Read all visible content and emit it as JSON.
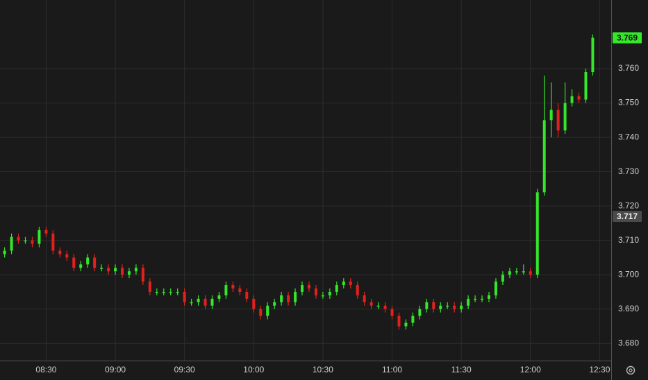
{
  "chart_data": {
    "type": "candlestick",
    "x": [
      "08:12",
      "08:15",
      "08:18",
      "08:21",
      "08:24",
      "08:27",
      "08:30",
      "08:33",
      "08:36",
      "08:39",
      "08:42",
      "08:45",
      "08:48",
      "08:51",
      "08:54",
      "08:57",
      "09:00",
      "09:03",
      "09:06",
      "09:09",
      "09:12",
      "09:15",
      "09:18",
      "09:21",
      "09:24",
      "09:27",
      "09:30",
      "09:33",
      "09:36",
      "09:39",
      "09:42",
      "09:45",
      "09:48",
      "09:51",
      "09:54",
      "09:57",
      "10:00",
      "10:03",
      "10:06",
      "10:09",
      "10:12",
      "10:15",
      "10:18",
      "10:21",
      "10:24",
      "10:27",
      "10:30",
      "10:33",
      "10:36",
      "10:39",
      "10:42",
      "10:45",
      "10:48",
      "10:51",
      "10:54",
      "10:57",
      "11:00",
      "11:03",
      "11:06",
      "11:09",
      "11:12",
      "11:15",
      "11:18",
      "11:21",
      "11:24",
      "11:27",
      "11:30",
      "11:33",
      "11:36",
      "11:39",
      "11:42",
      "11:45",
      "11:48",
      "11:51",
      "11:54",
      "11:57",
      "12:00",
      "12:03",
      "12:06",
      "12:09",
      "12:12",
      "12:15",
      "12:18",
      "12:21",
      "12:24",
      "12:27"
    ],
    "candles": [
      [
        3.706,
        3.708,
        3.705,
        3.707
      ],
      [
        3.707,
        3.712,
        3.706,
        3.711
      ],
      [
        3.711,
        3.712,
        3.709,
        3.71
      ],
      [
        3.71,
        3.711,
        3.709,
        3.71
      ],
      [
        3.71,
        3.711,
        3.708,
        3.709
      ],
      [
        3.709,
        3.714,
        3.708,
        3.713
      ],
      [
        3.713,
        3.714,
        3.711,
        3.712
      ],
      [
        3.712,
        3.713,
        3.706,
        3.707
      ],
      [
        3.707,
        3.708,
        3.705,
        3.706
      ],
      [
        3.706,
        3.707,
        3.704,
        3.705
      ],
      [
        3.705,
        3.706,
        3.701,
        3.702
      ],
      [
        3.702,
        3.704,
        3.701,
        3.703
      ],
      [
        3.703,
        3.706,
        3.702,
        3.705
      ],
      [
        3.705,
        3.706,
        3.701,
        3.702
      ],
      [
        3.702,
        3.703,
        3.701,
        3.702
      ],
      [
        3.702,
        3.703,
        3.7,
        3.701
      ],
      [
        3.701,
        3.703,
        3.7,
        3.702
      ],
      [
        3.702,
        3.703,
        3.699,
        3.7
      ],
      [
        3.7,
        3.702,
        3.699,
        3.701
      ],
      [
        3.701,
        3.703,
        3.7,
        3.702
      ],
      [
        3.702,
        3.703,
        3.697,
        3.698
      ],
      [
        3.698,
        3.699,
        3.694,
        3.695
      ],
      [
        3.695,
        3.696,
        3.694,
        3.695
      ],
      [
        3.695,
        3.696,
        3.694,
        3.695
      ],
      [
        3.695,
        3.696,
        3.694,
        3.695
      ],
      [
        3.695,
        3.696,
        3.694,
        3.695
      ],
      [
        3.695,
        3.696,
        3.691,
        3.692
      ],
      [
        3.692,
        3.693,
        3.691,
        3.692
      ],
      [
        3.692,
        3.694,
        3.691,
        3.693
      ],
      [
        3.693,
        3.694,
        3.69,
        3.691
      ],
      [
        3.691,
        3.694,
        3.69,
        3.693
      ],
      [
        3.693,
        3.695,
        3.692,
        3.694
      ],
      [
        3.694,
        3.698,
        3.693,
        3.697
      ],
      [
        3.697,
        3.698,
        3.695,
        3.696
      ],
      [
        3.696,
        3.697,
        3.694,
        3.695
      ],
      [
        3.695,
        3.696,
        3.692,
        3.693
      ],
      [
        3.693,
        3.694,
        3.689,
        3.69
      ],
      [
        3.69,
        3.691,
        3.687,
        3.688
      ],
      [
        3.688,
        3.692,
        3.687,
        3.691
      ],
      [
        3.691,
        3.693,
        3.69,
        3.692
      ],
      [
        3.692,
        3.695,
        3.691,
        3.694
      ],
      [
        3.694,
        3.695,
        3.691,
        3.692
      ],
      [
        3.692,
        3.696,
        3.691,
        3.695
      ],
      [
        3.695,
        3.698,
        3.694,
        3.697
      ],
      [
        3.697,
        3.698,
        3.695,
        3.696
      ],
      [
        3.696,
        3.697,
        3.693,
        3.694
      ],
      [
        3.694,
        3.695,
        3.693,
        3.694
      ],
      [
        3.694,
        3.696,
        3.693,
        3.695
      ],
      [
        3.695,
        3.698,
        3.694,
        3.697
      ],
      [
        3.697,
        3.699,
        3.696,
        3.698
      ],
      [
        3.698,
        3.699,
        3.696,
        3.697
      ],
      [
        3.697,
        3.698,
        3.693,
        3.694
      ],
      [
        3.694,
        3.695,
        3.691,
        3.692
      ],
      [
        3.692,
        3.693,
        3.69,
        3.691
      ],
      [
        3.691,
        3.692,
        3.69,
        3.691
      ],
      [
        3.691,
        3.692,
        3.689,
        3.69
      ],
      [
        3.69,
        3.691,
        3.687,
        3.688
      ],
      [
        3.688,
        3.689,
        3.684,
        3.685
      ],
      [
        3.685,
        3.687,
        3.684,
        3.686
      ],
      [
        3.686,
        3.689,
        3.685,
        3.688
      ],
      [
        3.688,
        3.691,
        3.687,
        3.69
      ],
      [
        3.69,
        3.693,
        3.689,
        3.692
      ],
      [
        3.692,
        3.693,
        3.689,
        3.69
      ],
      [
        3.69,
        3.692,
        3.689,
        3.691
      ],
      [
        3.691,
        3.692,
        3.69,
        3.691
      ],
      [
        3.691,
        3.692,
        3.689,
        3.69
      ],
      [
        3.69,
        3.692,
        3.689,
        3.691
      ],
      [
        3.691,
        3.694,
        3.69,
        3.693
      ],
      [
        3.693,
        3.694,
        3.692,
        3.693
      ],
      [
        3.693,
        3.694,
        3.692,
        3.693
      ],
      [
        3.693,
        3.695,
        3.692,
        3.694
      ],
      [
        3.694,
        3.699,
        3.693,
        3.698
      ],
      [
        3.698,
        3.701,
        3.697,
        3.7
      ],
      [
        3.7,
        3.702,
        3.699,
        3.701
      ],
      [
        3.701,
        3.702,
        3.7,
        3.701
      ],
      [
        3.701,
        3.703,
        3.7,
        3.701
      ],
      [
        3.701,
        3.702,
        3.699,
        3.7
      ],
      [
        3.7,
        3.725,
        3.699,
        3.724
      ],
      [
        3.724,
        3.758,
        3.723,
        3.745
      ],
      [
        3.745,
        3.756,
        3.74,
        3.748
      ],
      [
        3.748,
        3.75,
        3.74,
        3.742
      ],
      [
        3.742,
        3.756,
        3.741,
        3.75
      ],
      [
        3.75,
        3.754,
        3.749,
        3.752
      ],
      [
        3.752,
        3.753,
        3.75,
        3.751
      ],
      [
        3.751,
        3.76,
        3.75,
        3.759
      ],
      [
        3.759,
        3.77,
        3.758,
        3.769
      ]
    ],
    "up_color": "#35e62a",
    "down_color": "#e3211c",
    "xlim": [
      "08:10",
      "12:35"
    ],
    "xticks": [
      "08:30",
      "09:00",
      "09:30",
      "10:00",
      "10:30",
      "11:00",
      "11:30",
      "12:00",
      "12:30"
    ],
    "ylim": [
      3.675,
      3.78
    ],
    "yticks": [
      {
        "value": 3.68,
        "label": "3.680"
      },
      {
        "value": 3.69,
        "label": "3.690"
      },
      {
        "value": 3.7,
        "label": "3.700"
      },
      {
        "value": 3.71,
        "label": "3.710"
      },
      {
        "value": 3.72,
        "label": "3.720"
      },
      {
        "value": 3.73,
        "label": "3.730"
      },
      {
        "value": 3.74,
        "label": "3.740"
      },
      {
        "value": 3.75,
        "label": "3.750"
      },
      {
        "value": 3.76,
        "label": "3.760"
      }
    ],
    "grid": true,
    "last_price": 3.769,
    "reference_price": 3.717
  }
}
